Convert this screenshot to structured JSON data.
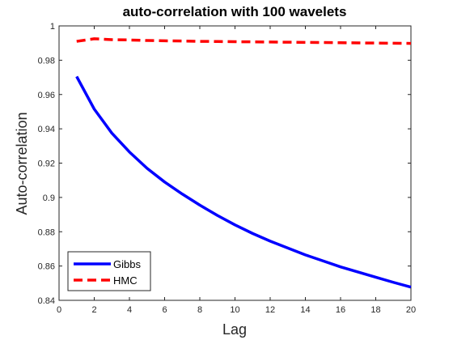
{
  "chart_data": {
    "type": "line",
    "title": "auto-correlation with 100 wavelets",
    "xlabel": "Lag",
    "ylabel": "Auto-correlation",
    "xlim": [
      0,
      20
    ],
    "ylim": [
      0.84,
      1.0
    ],
    "xticks": [
      0,
      2,
      4,
      6,
      8,
      10,
      12,
      14,
      16,
      18,
      20
    ],
    "yticks": [
      0.84,
      0.86,
      0.88,
      0.9,
      0.92,
      0.94,
      0.96,
      0.98,
      1
    ],
    "ytick_labels": [
      "0.84",
      "0.86",
      "0.88",
      "0.9",
      "0.92",
      "0.94",
      "0.96",
      "0.98",
      "1"
    ],
    "grid": false,
    "legend_position": "bottom-left",
    "series": [
      {
        "name": "Gibbs",
        "color": "#0000ff",
        "style": "solid",
        "x": [
          1,
          2,
          3,
          4,
          5,
          6,
          7,
          8,
          9,
          10,
          11,
          12,
          13,
          14,
          15,
          16,
          17,
          18,
          19,
          20
        ],
        "values": [
          0.9705,
          0.9515,
          0.9375,
          0.9265,
          0.917,
          0.909,
          0.902,
          0.8955,
          0.8895,
          0.884,
          0.879,
          0.8745,
          0.8705,
          0.8665,
          0.863,
          0.8595,
          0.8565,
          0.8535,
          0.8505,
          0.8477
        ]
      },
      {
        "name": "HMC",
        "color": "#ff0000",
        "style": "dashed",
        "x": [
          1,
          2,
          3,
          4,
          5,
          6,
          7,
          8,
          9,
          10,
          11,
          12,
          13,
          14,
          15,
          16,
          17,
          18,
          19,
          20
        ],
        "values": [
          0.991,
          0.9925,
          0.992,
          0.9918,
          0.9915,
          0.9913,
          0.9912,
          0.991,
          0.9909,
          0.9908,
          0.9907,
          0.9906,
          0.9905,
          0.9904,
          0.9903,
          0.9902,
          0.9901,
          0.99,
          0.9899,
          0.9898
        ]
      }
    ]
  }
}
